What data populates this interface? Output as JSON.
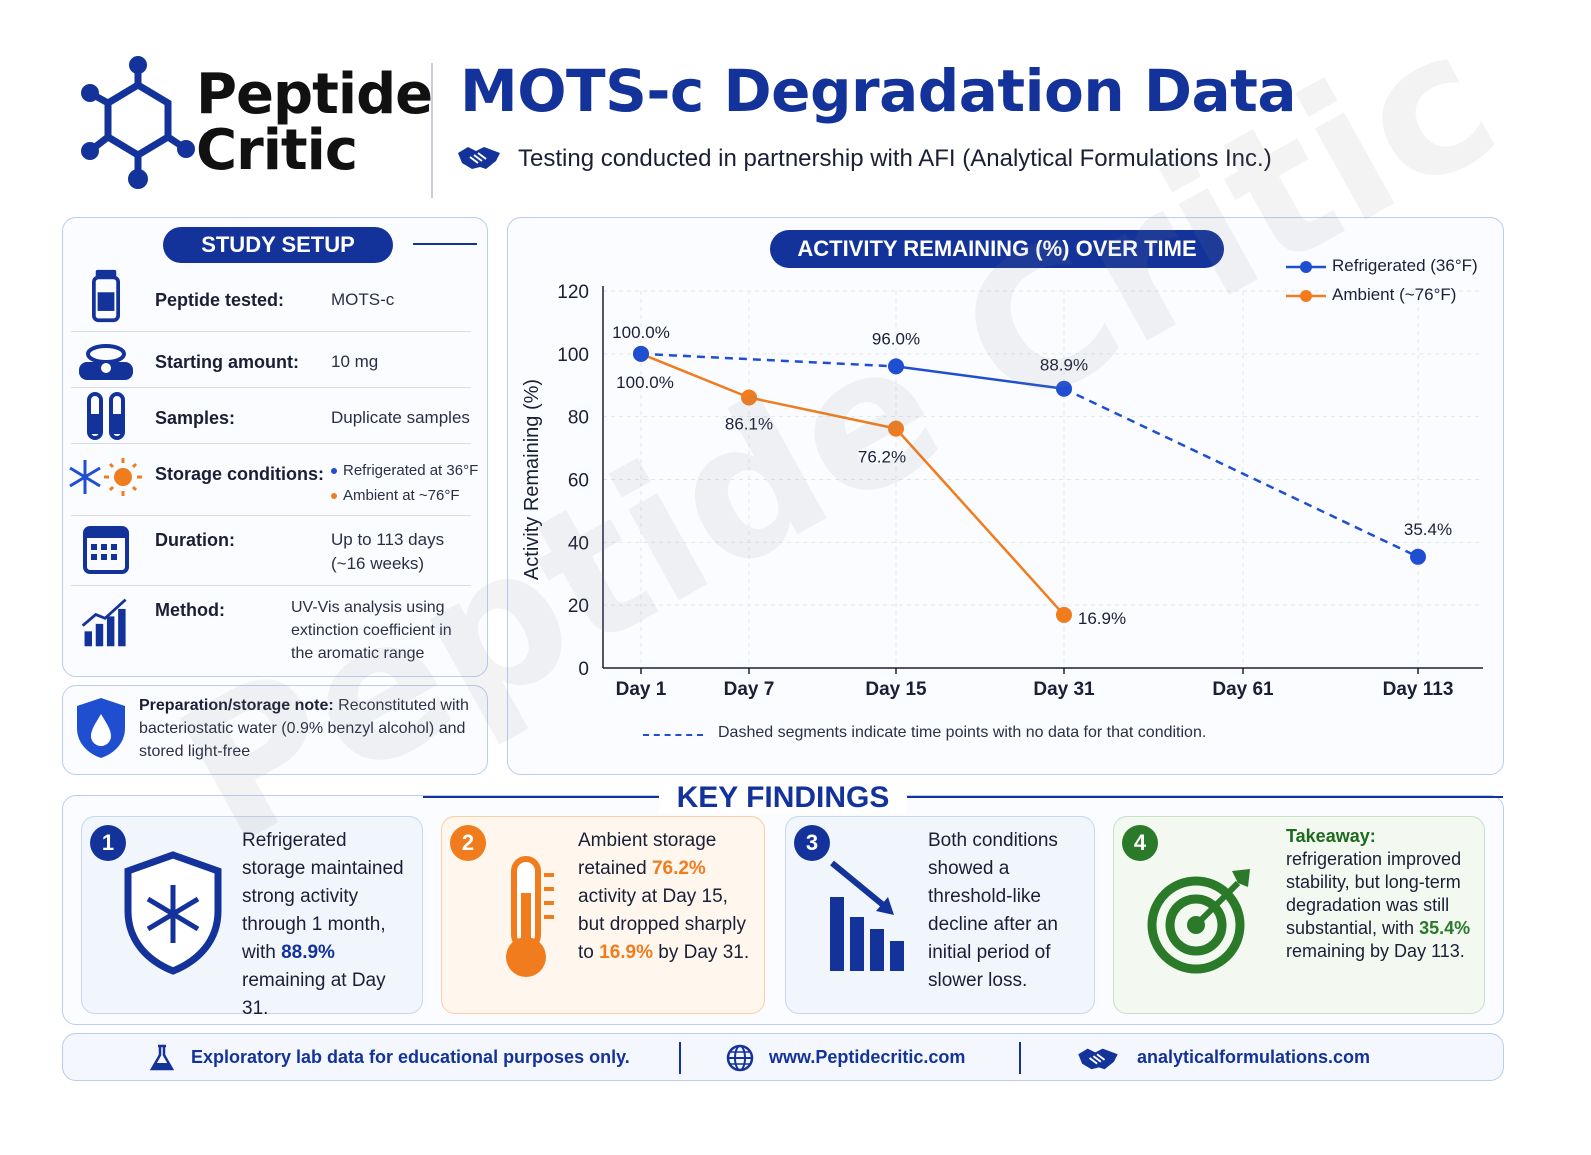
{
  "brand": {
    "name_line1": "Peptide",
    "name_line2": "Critic",
    "watermark": "Peptide Critic"
  },
  "header": {
    "title": "MOTS-c Degradation Data",
    "subtitle": "Testing conducted in partnership with AFI (Analytical Formulations Inc.)",
    "partner_icon": "handshake-icon"
  },
  "study_setup": {
    "title": "STUDY SETUP",
    "rows": [
      {
        "label": "Peptide tested:",
        "value": "MOTS-c",
        "icon": "vial-icon"
      },
      {
        "label": "Starting amount:",
        "value": "10 mg",
        "icon": "scale-icon"
      },
      {
        "label": "Samples:",
        "value": "Duplicate samples",
        "icon": "test-tubes-icon"
      },
      {
        "label": "Storage conditions:",
        "value_line1": "Refrigerated at 36°F",
        "value_line2": "Ambient at ~76°F",
        "icon": "snowflake-sun-icon"
      },
      {
        "label": "Duration:",
        "value_line1": "Up to 113 days",
        "value_line2": "(~16 weeks)",
        "icon": "calendar-icon"
      },
      {
        "label": "Method:",
        "value_line1": "UV-Vis analysis using",
        "value_line2": "extinction coefficient in",
        "value_line3": "the aromatic range",
        "icon": "chart-growth-icon"
      }
    ]
  },
  "note": {
    "label": "Preparation/storage note:",
    "text": " Reconstituted with bacteriostatic water (0.9% benzyl alcohol) and stored light-free",
    "icon": "shield-water-drop-icon"
  },
  "chart_data": {
    "type": "line",
    "title": "ACTIVITY REMAINING (%) OVER TIME",
    "ylabel": "Activity Remaining (%)",
    "xlabel": "",
    "categories": [
      "Day 1",
      "Day 7",
      "Day 15",
      "Day 31",
      "Day 61",
      "Day 113"
    ],
    "ylim": [
      0,
      120
    ],
    "yticks": [
      0,
      20,
      40,
      60,
      80,
      100,
      120
    ],
    "grid": true,
    "legend_position": "top-right",
    "series": [
      {
        "name": "Refrigerated (36°F)",
        "color": "#1f4fd0",
        "points": [
          {
            "x": "Day 1",
            "y": 100.0,
            "label": "100.0%"
          },
          {
            "x": "Day 15",
            "y": 96.0,
            "label": "96.0%"
          },
          {
            "x": "Day 31",
            "y": 88.9,
            "label": "88.9%"
          },
          {
            "x": "Day 113",
            "y": 35.4,
            "label": "35.4%"
          }
        ]
      },
      {
        "name": "Ambient (~76°F)",
        "color": "#f07c1e",
        "points": [
          {
            "x": "Day 1",
            "y": 100.0,
            "label": "100.0%"
          },
          {
            "x": "Day 7",
            "y": 86.1,
            "label": "86.1%"
          },
          {
            "x": "Day 15",
            "y": 76.2,
            "label": "76.2%"
          },
          {
            "x": "Day 31",
            "y": 16.9,
            "label": "16.9%"
          }
        ]
      }
    ],
    "annotation": "Dashed segments indicate time points with no data for that condition."
  },
  "key_findings": {
    "title": "KEY FINDINGS",
    "items": [
      {
        "number": "1",
        "icon": "shield-snowflake-icon",
        "pre": "Refrigerated storage maintained strong activity through 1 month, with ",
        "hl1": "88.9%",
        "mid": " remaining at Day 31.",
        "hl2": "",
        "post": ""
      },
      {
        "number": "2",
        "icon": "thermometer-icon",
        "pre": "Ambient storage retained ",
        "hl1": "76.2%",
        "mid": " activity at Day 15, but dropped sharply to ",
        "hl2": "16.9%",
        "post": " by Day 31."
      },
      {
        "number": "3",
        "icon": "declining-bars-icon",
        "pre": "Both conditions showed a threshold-like decline after an initial period of slower loss.",
        "hl1": "",
        "mid": "",
        "hl2": "",
        "post": ""
      },
      {
        "number": "4",
        "icon": "target-arrow-icon",
        "head": "Takeaway:",
        "pre": " refrigeration improved stability, but long-term degradation was still substantial, with ",
        "hl1": "35.4%",
        "mid": " remaining by Day 113.",
        "hl2": "",
        "post": ""
      }
    ]
  },
  "footer": {
    "disclaimer": "Exploratory lab data for educational purposes only.",
    "site": "www.Peptidecritic.com",
    "partner_site": "analyticalformulations.com"
  },
  "colors": {
    "primary": "#14339a",
    "refrigerated": "#1f4fd0",
    "ambient": "#f07c1e",
    "takeaway": "#2a7a2a"
  }
}
